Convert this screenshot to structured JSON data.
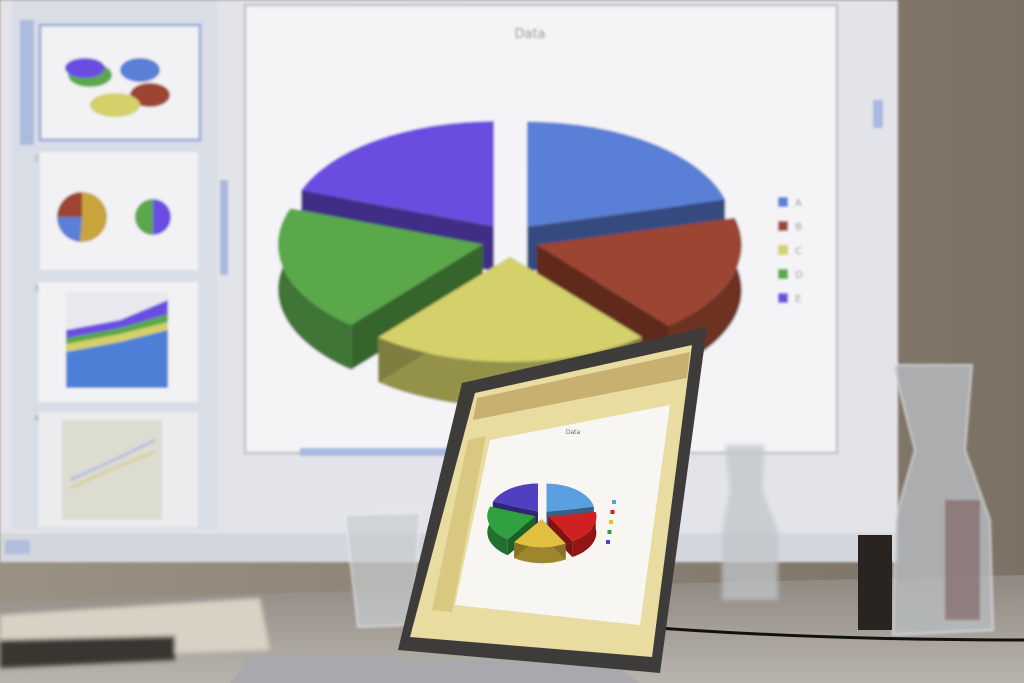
{
  "projector": {
    "slide_title": "Data",
    "legend": [
      {
        "label": "A",
        "color": "#5a7fd6"
      },
      {
        "label": "B",
        "color": "#9c4533"
      },
      {
        "label": "C",
        "color": "#d4d06a"
      },
      {
        "label": "D",
        "color": "#5aa84a"
      },
      {
        "label": "E",
        "color": "#6a4ee0"
      }
    ],
    "thumbnail_numbers": [
      "1",
      "2",
      "3",
      "4"
    ]
  },
  "laptop": {
    "slide_title": "Data",
    "legend_colors": [
      "#5aa0e0",
      "#d02020",
      "#e0c040",
      "#30a040",
      "#5040c0"
    ]
  }
}
